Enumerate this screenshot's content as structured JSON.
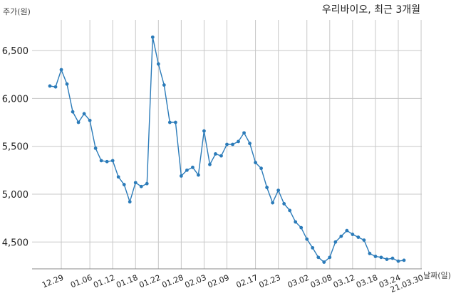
{
  "chart_data": {
    "type": "line",
    "title": "우리바이오, 최근 3개월",
    "ylabel": "주가(원)",
    "xlabel": "날짜(일)",
    "ylim": [
      4220,
      6820
    ],
    "yticks": [
      4500,
      5000,
      5500,
      6000,
      6500
    ],
    "ytick_labels": [
      "4,500",
      "5,000",
      "5,500",
      "6,000",
      "6,500"
    ],
    "xtick_labels": [
      "12.29",
      "01.06",
      "01.12",
      "01.18",
      "01.22",
      "01.28",
      "02.03",
      "02.09",
      "02.17",
      "02.23",
      "03.02",
      "03.08",
      "03.12",
      "03.18",
      "03.24",
      "21.03.30"
    ],
    "xtick_index": [
      2,
      7,
      11,
      15,
      19,
      23,
      27,
      31,
      36,
      40,
      45,
      49,
      53,
      57,
      61,
      65
    ],
    "grid": true,
    "color": "#2b7bb9",
    "series": [
      {
        "values": [
          6130,
          6120,
          6300,
          6150,
          5860,
          5750,
          5840,
          5770,
          5480,
          5350,
          5340,
          5350,
          5180,
          5100,
          4920,
          5120,
          5080,
          5110,
          6640,
          6360,
          6140,
          5750,
          5750,
          5190,
          5250,
          5280,
          5200,
          5660,
          5310,
          5420,
          5400,
          5520,
          5520,
          5550,
          5640,
          5530,
          5330,
          5270,
          5070,
          4910,
          5040,
          4900,
          4830,
          4710,
          4650,
          4530,
          4440,
          4340,
          4290,
          4340,
          4500,
          4560,
          4620,
          4580,
          4550,
          4520,
          4380,
          4350,
          4340,
          4320,
          4330,
          4300,
          4310
        ]
      }
    ]
  }
}
